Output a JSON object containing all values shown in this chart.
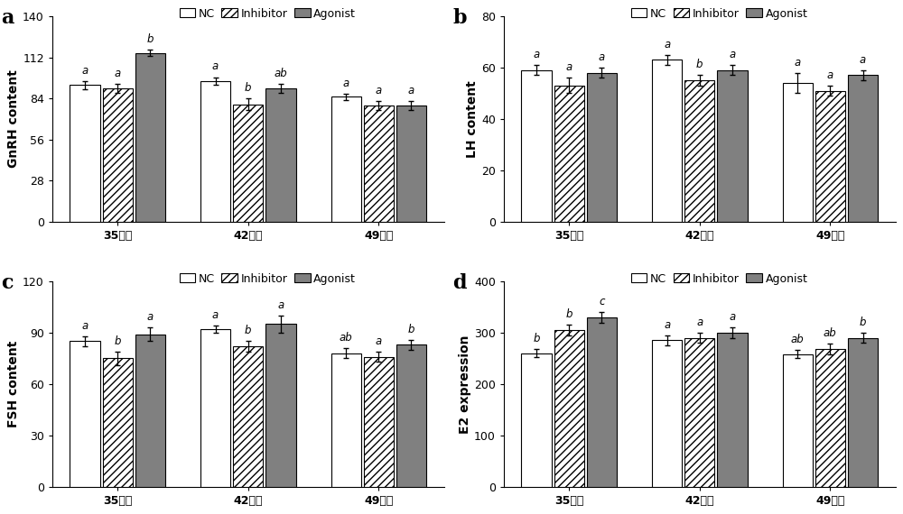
{
  "panels": [
    {
      "label": "a",
      "ylabel": "GnRH content",
      "ylim": [
        0,
        140
      ],
      "yticks": [
        0,
        28,
        56,
        84,
        112,
        140
      ],
      "groups": [
        "35日龄",
        "42日龄",
        "49日龄"
      ],
      "values": {
        "NC": [
          93,
          96,
          85
        ],
        "Inhibitor": [
          91,
          80,
          79
        ],
        "Agonist": [
          115,
          91,
          79
        ]
      },
      "errors": {
        "NC": [
          3,
          2.5,
          2
        ],
        "Inhibitor": [
          3,
          4,
          3
        ],
        "Agonist": [
          2,
          3,
          3
        ]
      },
      "sig_labels": {
        "NC": [
          "a",
          "a",
          "a"
        ],
        "Inhibitor": [
          "a",
          "b",
          "a"
        ],
        "Agonist": [
          "b",
          "ab",
          "a"
        ]
      }
    },
    {
      "label": "b",
      "ylabel": "LH content",
      "ylim": [
        0,
        80
      ],
      "yticks": [
        0,
        20,
        40,
        60,
        80
      ],
      "groups": [
        "35日龄",
        "42日龄",
        "49日龄"
      ],
      "values": {
        "NC": [
          59,
          63,
          54
        ],
        "Inhibitor": [
          53,
          55,
          51
        ],
        "Agonist": [
          58,
          59,
          57
        ]
      },
      "errors": {
        "NC": [
          2,
          2,
          4
        ],
        "Inhibitor": [
          3,
          2,
          2
        ],
        "Agonist": [
          2,
          2,
          2
        ]
      },
      "sig_labels": {
        "NC": [
          "a",
          "a",
          "a"
        ],
        "Inhibitor": [
          "a",
          "b",
          "a"
        ],
        "Agonist": [
          "a",
          "a",
          "a"
        ]
      }
    },
    {
      "label": "c",
      "ylabel": "FSH content",
      "ylim": [
        0,
        120
      ],
      "yticks": [
        0,
        30,
        60,
        90,
        120
      ],
      "groups": [
        "35日龄",
        "42日龄",
        "49日龄"
      ],
      "values": {
        "NC": [
          85,
          92,
          78
        ],
        "Inhibitor": [
          75,
          82,
          76
        ],
        "Agonist": [
          89,
          95,
          83
        ]
      },
      "errors": {
        "NC": [
          3,
          2,
          3
        ],
        "Inhibitor": [
          4,
          3,
          3
        ],
        "Agonist": [
          4,
          5,
          3
        ]
      },
      "sig_labels": {
        "NC": [
          "a",
          "a",
          "ab"
        ],
        "Inhibitor": [
          "b",
          "b",
          "a"
        ],
        "Agonist": [
          "a",
          "a",
          "b"
        ]
      }
    },
    {
      "label": "d",
      "ylabel": "E2 expression",
      "ylim": [
        0,
        400
      ],
      "yticks": [
        0,
        100,
        200,
        300,
        400
      ],
      "groups": [
        "35日龄",
        "42日龄",
        "49日龄"
      ],
      "values": {
        "NC": [
          260,
          285,
          258
        ],
        "Inhibitor": [
          305,
          290,
          268
        ],
        "Agonist": [
          330,
          300,
          290
        ]
      },
      "errors": {
        "NC": [
          8,
          10,
          8
        ],
        "Inhibitor": [
          10,
          10,
          10
        ],
        "Agonist": [
          10,
          10,
          10
        ]
      },
      "sig_labels": {
        "NC": [
          "b",
          "a",
          "ab"
        ],
        "Inhibitor": [
          "b",
          "a",
          "ab"
        ],
        "Agonist": [
          "c",
          "a",
          "b"
        ]
      }
    }
  ],
  "bar_colors": [
    "#ffffff",
    "#ffffff",
    "#808080"
  ],
  "bar_edgecolor": "#000000",
  "hatch_patterns": [
    "",
    "////",
    ""
  ],
  "legend_labels": [
    "NC",
    "Inhibitor",
    "Agonist"
  ],
  "bar_width": 0.25,
  "sig_fontsize": 8.5,
  "label_fontsize": 10,
  "tick_fontsize": 9,
  "legend_fontsize": 9,
  "panel_label_fontsize": 16
}
